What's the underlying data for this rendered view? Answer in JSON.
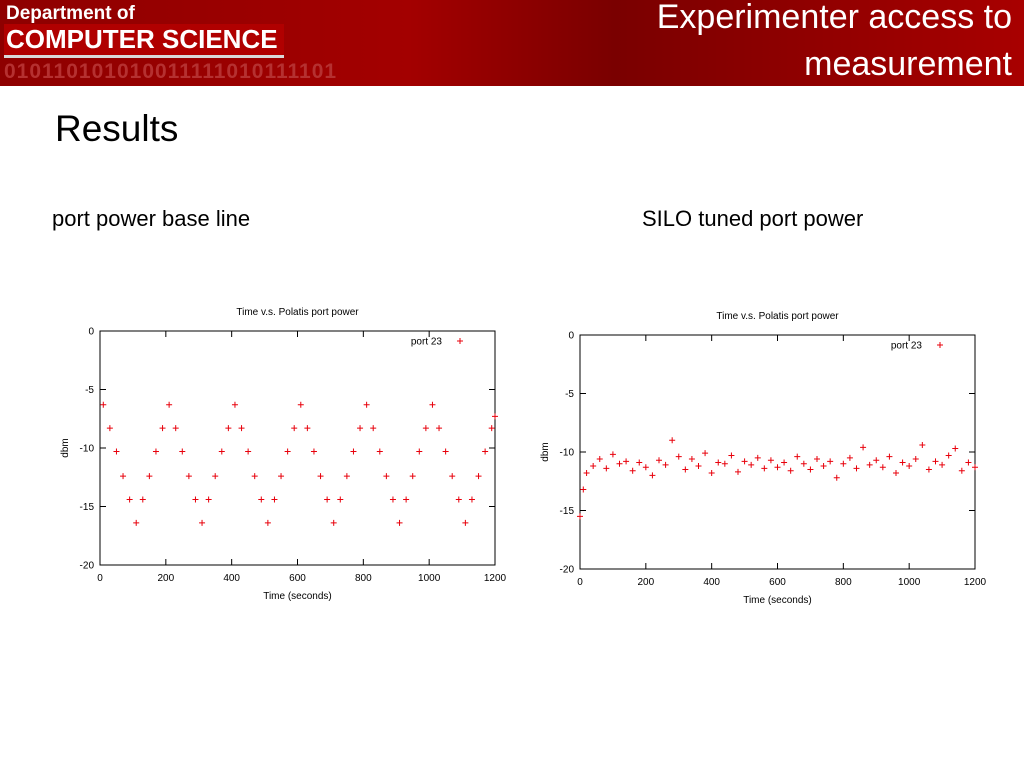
{
  "header": {
    "dept_line1": "Department of",
    "dept_line2": "COMPUTER SCIENCE",
    "binary": "010110101010011111010111101",
    "title": "Experimenter access to measurement"
  },
  "heading": "Results",
  "captions": [
    "port  power base line",
    "SILO tuned port power"
  ],
  "chart_data": [
    {
      "type": "scatter",
      "title": "Time v.s. Polatis port power",
      "xlabel": "Time (seconds)",
      "ylabel": "dbm",
      "xlim": [
        0,
        1200
      ],
      "xticks": [
        0,
        200,
        400,
        600,
        800,
        1000,
        1200
      ],
      "ylim": [
        -20,
        0
      ],
      "yticks": [
        0,
        -5,
        -10,
        -15,
        -20
      ],
      "legend": "top-right",
      "series": [
        {
          "name": "port 23",
          "color": "#e8000b",
          "x": [
            10,
            30,
            50,
            70,
            90,
            110,
            130,
            150,
            170,
            190,
            210,
            230,
            250,
            270,
            290,
            310,
            330,
            350,
            370,
            390,
            410,
            430,
            450,
            470,
            490,
            510,
            530,
            550,
            570,
            590,
            610,
            630,
            650,
            670,
            690,
            710,
            730,
            750,
            770,
            790,
            810,
            830,
            850,
            870,
            890,
            910,
            930,
            950,
            970,
            990,
            1010,
            1030,
            1050,
            1070,
            1090,
            1110,
            1130,
            1150,
            1170,
            1190,
            1200
          ],
          "values": [
            -6.3,
            -8.3,
            -10.3,
            -12.4,
            -14.4,
            -16.4,
            -14.4,
            -12.4,
            -10.3,
            -8.3,
            -6.3,
            -8.3,
            -10.3,
            -12.4,
            -14.4,
            -16.4,
            -14.4,
            -12.4,
            -10.3,
            -8.3,
            -6.3,
            -8.3,
            -10.3,
            -12.4,
            -14.4,
            -16.4,
            -14.4,
            -12.4,
            -10.3,
            -8.3,
            -6.3,
            -8.3,
            -10.3,
            -12.4,
            -14.4,
            -16.4,
            -14.4,
            -12.4,
            -10.3,
            -8.3,
            -6.3,
            -8.3,
            -10.3,
            -12.4,
            -14.4,
            -16.4,
            -14.4,
            -12.4,
            -10.3,
            -8.3,
            -6.3,
            -8.3,
            -10.3,
            -12.4,
            -14.4,
            -16.4,
            -14.4,
            -12.4,
            -10.3,
            -8.3,
            -7.3
          ]
        }
      ]
    },
    {
      "type": "scatter",
      "title": "Time v.s. Polatis port power",
      "xlabel": "Time (seconds)",
      "ylabel": "dbm",
      "xlim": [
        0,
        1200
      ],
      "xticks": [
        0,
        200,
        400,
        600,
        800,
        1000,
        1200
      ],
      "ylim": [
        -20,
        0
      ],
      "yticks": [
        0,
        -5,
        -10,
        -15,
        -20
      ],
      "legend": "top-right",
      "series": [
        {
          "name": "port 23",
          "color": "#e8000b",
          "x": [
            0,
            10,
            20,
            40,
            60,
            80,
            100,
            120,
            140,
            160,
            180,
            200,
            220,
            240,
            260,
            280,
            300,
            320,
            340,
            360,
            380,
            400,
            420,
            440,
            460,
            480,
            500,
            520,
            540,
            560,
            580,
            600,
            620,
            640,
            660,
            680,
            700,
            720,
            740,
            760,
            780,
            800,
            820,
            840,
            860,
            880,
            900,
            920,
            940,
            960,
            980,
            1000,
            1020,
            1040,
            1060,
            1080,
            1100,
            1120,
            1140,
            1160,
            1180,
            1200
          ],
          "values": [
            -15.5,
            -13.2,
            -11.8,
            -11.2,
            -10.6,
            -11.4,
            -10.2,
            -11.0,
            -10.8,
            -11.6,
            -10.9,
            -11.3,
            -12.0,
            -10.7,
            -11.1,
            -9.0,
            -10.4,
            -11.5,
            -10.6,
            -11.2,
            -10.1,
            -11.8,
            -10.9,
            -11.0,
            -10.3,
            -11.7,
            -10.8,
            -11.1,
            -10.5,
            -11.4,
            -10.7,
            -11.3,
            -10.9,
            -11.6,
            -10.4,
            -11.0,
            -11.5,
            -10.6,
            -11.2,
            -10.8,
            -12.2,
            -11.0,
            -10.5,
            -11.4,
            -9.6,
            -11.1,
            -10.7,
            -11.3,
            -10.4,
            -11.8,
            -10.9,
            -11.2,
            -10.6,
            -9.4,
            -11.5,
            -10.8,
            -11.1,
            -10.3,
            -9.7,
            -11.6,
            -10.9,
            -11.3
          ]
        }
      ]
    }
  ]
}
